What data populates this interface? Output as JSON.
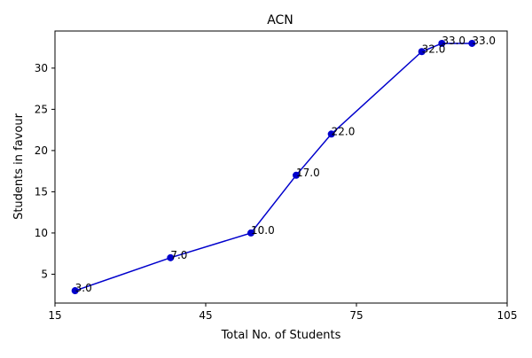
{
  "chart_data": {
    "type": "line",
    "title": "ACN",
    "xlabel": "Total No. of Students",
    "ylabel": "Students in favour",
    "xlim": [
      15,
      105
    ],
    "ylim": [
      1.5,
      34.5
    ],
    "xticks": [
      15,
      45,
      75,
      105
    ],
    "yticks": [
      5,
      10,
      15,
      20,
      25,
      30
    ],
    "grid": false,
    "series": [
      {
        "color": "#0000cc",
        "marker": "circle",
        "x": [
          19,
          38,
          54,
          63,
          70,
          88,
          92,
          98
        ],
        "y": [
          3.0,
          7.0,
          10.0,
          17.0,
          22.0,
          32.0,
          33.0,
          33.0
        ],
        "labels": [
          "3.0",
          "7.0",
          "10.0",
          "17.0",
          "22.0",
          "32.0",
          "33.0",
          "33.0"
        ]
      }
    ]
  }
}
